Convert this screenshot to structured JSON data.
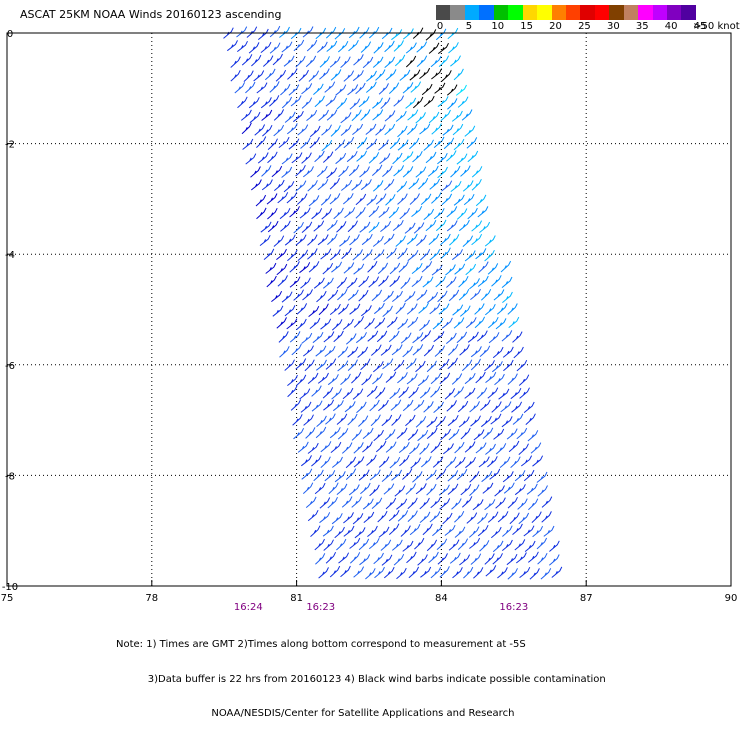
{
  "title": "ASCAT 25KM NOAA Winds 20160123 ascending",
  "legend": {
    "unit_label": ">50 knots",
    "ticks": [
      "0",
      "5",
      "10",
      "15",
      "20",
      "25",
      "30",
      "35",
      "40",
      "45"
    ],
    "colors": [
      "#4a4a4a",
      "#8a8a8a",
      "#00aaff",
      "#0070ff",
      "#00c000",
      "#00ff00",
      "#ffd700",
      "#ffff00",
      "#ff7f00",
      "#ff4000",
      "#e00000",
      "#ff0000",
      "#804000",
      "#c08060",
      "#ff00ff",
      "#c000ff",
      "#8000c0",
      "#5000a0"
    ]
  },
  "map": {
    "lon_ticks": [
      "75",
      "78",
      "81",
      "84",
      "87",
      "90"
    ],
    "lat_ticks": [
      "0",
      "-2",
      "-4",
      "-6",
      "-8",
      "-10"
    ],
    "lon_range": [
      75,
      90
    ],
    "lat_range": [
      -10,
      0
    ],
    "grid": "dotted",
    "swath_color": "#0000cc",
    "time_labels": [
      {
        "text": "16:24",
        "lon": 80.0
      },
      {
        "text": "16:23",
        "lon": 81.5
      },
      {
        "text": "16:23",
        "lon": 85.5
      }
    ],
    "time_color": "#800080"
  },
  "notes": [
    "Note: 1) Times are GMT 2)Times along bottom correspond to measurement at -5S",
    "          3)Data buffer is 22 hrs from 20160123 4) Black wind barbs indicate possible contamination",
    "                              NOAA/NESDIS/Center for Satellite Applications and Research"
  ],
  "chart_data": {
    "type": "scatter",
    "title": "ASCAT 25KM NOAA Winds 20160123 ascending",
    "xlabel": "",
    "ylabel": "",
    "xlim": [
      75,
      90
    ],
    "ylim": [
      -10,
      0
    ],
    "x_ticks": [
      75,
      78,
      81,
      84,
      87,
      90
    ],
    "y_ticks": [
      0,
      -2,
      -4,
      -6,
      -8,
      -10
    ],
    "swath": {
      "description_type": "wind barbs",
      "corners": [
        [
          79.5,
          0
        ],
        [
          84.2,
          0
        ],
        [
          86.5,
          -10
        ],
        [
          81.5,
          -10
        ]
      ]
    },
    "legend_location": "top-right"
  }
}
